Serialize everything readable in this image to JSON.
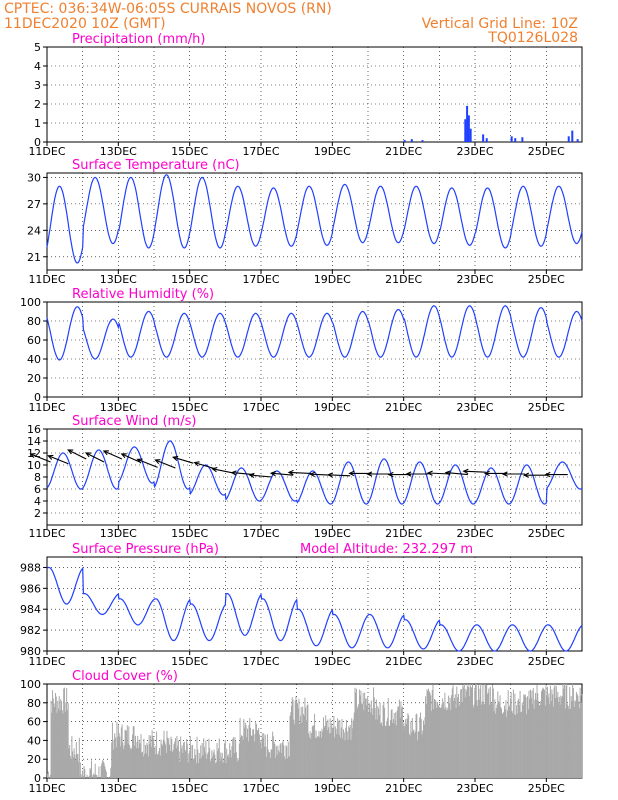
{
  "header": {
    "station": "CPTEC:   036:34W-06:05S   CURRAIS NOVOS (RN)",
    "date": "11DEC2020 10Z (GMT)",
    "grid_line": "Vertical Grid Line: 10Z",
    "code": "TQ0126L028"
  },
  "colors": {
    "header": "#f08030",
    "panel_title": "#ff00cc",
    "series": "#2040ff",
    "cloud": "#a8a8a8"
  },
  "x_labels": [
    "11DEC",
    "13DEC",
    "15DEC",
    "17DEC",
    "19DEC",
    "21DEC",
    "23DEC",
    "25DEC"
  ],
  "chart_data": [
    {
      "type": "bar",
      "title": "Precipitation (mm/h)",
      "ylim": [
        0,
        5
      ],
      "yticks": [
        0,
        1,
        2,
        3,
        4,
        5
      ],
      "x_range_days": [
        11,
        26
      ],
      "bars": [
        [
          21.0,
          0.1
        ],
        [
          21.2,
          0.15
        ],
        [
          21.5,
          0.1
        ],
        [
          22.7,
          1.2
        ],
        [
          22.75,
          1.9
        ],
        [
          22.8,
          1.4
        ],
        [
          22.85,
          0.7
        ],
        [
          23.2,
          0.4
        ],
        [
          23.3,
          0.2
        ],
        [
          24.0,
          0.3
        ],
        [
          24.1,
          0.2
        ],
        [
          24.3,
          0.25
        ],
        [
          25.6,
          0.3
        ],
        [
          25.7,
          0.6
        ],
        [
          25.85,
          0.15
        ]
      ]
    },
    {
      "type": "line",
      "title": "Surface Temperature (nC)",
      "ylim": [
        19.5,
        30.5
      ],
      "yticks": [
        21,
        24,
        27,
        30
      ],
      "x_range_days": [
        11,
        26
      ],
      "daily_max": [
        29,
        30,
        30,
        30.3,
        30,
        29,
        28.8,
        29,
        29.2,
        29,
        29,
        28.8,
        28.8,
        29,
        29
      ],
      "daily_min": [
        20.3,
        22.5,
        22,
        22,
        22,
        22.2,
        22.2,
        22.3,
        22.6,
        22.6,
        22.5,
        22.3,
        22,
        22.2,
        22.5
      ]
    },
    {
      "type": "line",
      "title": "Relative Humidity (%)",
      "ylim": [
        0,
        100
      ],
      "yticks": [
        0,
        20,
        40,
        60,
        80,
        100
      ],
      "x_range_days": [
        11,
        26
      ],
      "daily_max": [
        95,
        82,
        90,
        88,
        88,
        88,
        88,
        88,
        90,
        92,
        96,
        96,
        96,
        94,
        90
      ],
      "daily_min": [
        39,
        40,
        42,
        42,
        42,
        42,
        42,
        42,
        42,
        42,
        42,
        42,
        42,
        42,
        42
      ]
    },
    {
      "type": "line",
      "title": "Surface Wind (m/s)",
      "ylim": [
        0,
        16
      ],
      "yticks": [
        2,
        4,
        6,
        8,
        10,
        12,
        14,
        16
      ],
      "x_range_days": [
        11,
        26
      ],
      "daily_max": [
        12,
        12.5,
        13,
        14,
        10,
        9.5,
        9,
        9,
        10.5,
        11,
        10.5,
        10,
        9.5,
        10,
        10.5
      ],
      "daily_min": [
        6,
        6,
        7,
        6,
        5,
        4,
        4,
        3.5,
        3.5,
        3.5,
        3.5,
        3.5,
        3.5,
        3.5,
        6
      ]
    },
    {
      "type": "line",
      "title": "Surface Pressure (hPa)",
      "annotation": "Model Altitude: 232.297 m",
      "ylim": [
        980,
        989
      ],
      "yticks": [
        980,
        982,
        984,
        986,
        988
      ],
      "x_range_days": [
        11,
        26
      ],
      "daily_max": [
        988,
        985.5,
        985,
        985,
        984.5,
        985.5,
        985,
        984,
        983.5,
        983.5,
        983,
        982.5,
        982.5,
        982.5,
        982.5
      ],
      "daily_min": [
        984.5,
        983.5,
        982.5,
        981,
        981,
        981.5,
        981,
        980.5,
        980.3,
        980.3,
        980.2,
        980,
        980,
        980,
        980
      ]
    },
    {
      "type": "bar",
      "title": "Cloud Cover (%)",
      "ylim": [
        0,
        100
      ],
      "yticks": [
        0,
        20,
        40,
        60,
        80,
        100
      ],
      "x_range_days": [
        11,
        26
      ],
      "segments": [
        [
          11.0,
          11.1,
          5
        ],
        [
          11.1,
          11.6,
          82
        ],
        [
          11.6,
          11.9,
          30
        ],
        [
          11.9,
          12.8,
          5
        ],
        [
          12.8,
          13.6,
          45
        ],
        [
          13.6,
          14.4,
          38
        ],
        [
          14.4,
          15.4,
          30
        ],
        [
          15.4,
          16.4,
          30
        ],
        [
          16.4,
          17.0,
          50
        ],
        [
          17.0,
          17.8,
          35
        ],
        [
          17.8,
          18.3,
          72
        ],
        [
          18.3,
          19.6,
          55
        ],
        [
          19.6,
          20.2,
          82
        ],
        [
          20.2,
          21.0,
          70
        ],
        [
          21.0,
          21.6,
          55
        ],
        [
          21.6,
          22.5,
          85
        ],
        [
          22.5,
          23.5,
          90
        ],
        [
          23.5,
          24.6,
          80
        ],
        [
          24.6,
          26.0,
          88
        ]
      ]
    }
  ],
  "wind_arrows": [
    {
      "day": 11.1,
      "value": 10.5,
      "dx": -20,
      "dy": -8
    },
    {
      "day": 11.6,
      "value": 10.2,
      "dx": -20,
      "dy": -8
    },
    {
      "day": 12.1,
      "value": 11,
      "dx": -18,
      "dy": -9
    },
    {
      "day": 12.6,
      "value": 10.5,
      "dx": -18,
      "dy": -9
    },
    {
      "day": 13.1,
      "value": 11,
      "dx": -18,
      "dy": -8
    },
    {
      "day": 13.6,
      "value": 10.5,
      "dx": -18,
      "dy": -8
    },
    {
      "day": 14.1,
      "value": 9.6,
      "dx": -20,
      "dy": -8
    },
    {
      "day": 14.6,
      "value": 9.5,
      "dx": -20,
      "dy": -8
    },
    {
      "day": 15.1,
      "value": 10.3,
      "dx": -20,
      "dy": -6
    },
    {
      "day": 15.7,
      "value": 9.4,
      "dx": -20,
      "dy": -6
    },
    {
      "day": 16.2,
      "value": 8.7,
      "dx": -20,
      "dy": -4
    },
    {
      "day": 16.8,
      "value": 8.4,
      "dx": -22,
      "dy": -2
    },
    {
      "day": 17.3,
      "value": 8,
      "dx": -22,
      "dy": -2
    },
    {
      "day": 17.9,
      "value": 8.3,
      "dx": -22,
      "dy": -2
    },
    {
      "day": 18.4,
      "value": 8.6,
      "dx": -22,
      "dy": -1
    },
    {
      "day": 19.0,
      "value": 8.3,
      "dx": -22,
      "dy": -1
    },
    {
      "day": 19.5,
      "value": 8.2,
      "dx": -22,
      "dy": -1
    },
    {
      "day": 20.1,
      "value": 8.6,
      "dx": -22,
      "dy": 0
    },
    {
      "day": 20.6,
      "value": 8.5,
      "dx": -22,
      "dy": 0
    },
    {
      "day": 21.2,
      "value": 8.4,
      "dx": -22,
      "dy": 0
    },
    {
      "day": 21.7,
      "value": 8.5,
      "dx": -22,
      "dy": 0
    },
    {
      "day": 22.3,
      "value": 8.5,
      "dx": -22,
      "dy": -1
    },
    {
      "day": 22.8,
      "value": 8.4,
      "dx": -22,
      "dy": -2
    },
    {
      "day": 23.3,
      "value": 8.8,
      "dx": -22,
      "dy": -1
    },
    {
      "day": 23.9,
      "value": 8.6,
      "dx": -22,
      "dy": 0
    },
    {
      "day": 24.4,
      "value": 8.5,
      "dx": -22,
      "dy": 0
    },
    {
      "day": 25.0,
      "value": 8.3,
      "dx": -22,
      "dy": 0
    },
    {
      "day": 25.6,
      "value": 8.4,
      "dx": -22,
      "dy": 0
    }
  ]
}
